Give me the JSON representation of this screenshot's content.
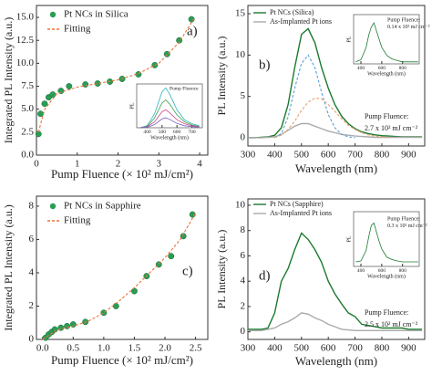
{
  "chart_data": [
    {
      "type": "scatter",
      "panel_label": "a)",
      "xlabel": "Pump Fluence (× 10² mJ/cm²)",
      "ylabel": "Integrated PL Intensity (a.u.)",
      "xlim": [
        0,
        4.2
      ],
      "xticks": [
        0,
        1,
        2,
        3,
        4
      ],
      "ylim": [
        0,
        16.3
      ],
      "yticks": [
        {
          "value": 0,
          "label": "0.0"
        },
        2.5,
        {
          "value": 5,
          "label": "5.0"
        },
        7.5,
        {
          "value": 10,
          "label": "10.0"
        },
        12.5,
        {
          "value": 15,
          "label": "15.0"
        }
      ],
      "series": [
        {
          "name": "Pt NCs in Silica",
          "style": "markers",
          "color": "#2a9d55",
          "x": [
            0.05,
            0.1,
            0.2,
            0.3,
            0.4,
            0.6,
            0.8,
            1.2,
            1.5,
            1.8,
            2.1,
            2.5,
            2.9,
            3.2,
            3.5,
            3.8
          ],
          "values": [
            2.3,
            4.5,
            5.6,
            6.3,
            6.6,
            7,
            7.5,
            7.7,
            7.8,
            8,
            8.3,
            8.8,
            9.8,
            11,
            12.5,
            14.8
          ]
        },
        {
          "name": "Fitting",
          "style": "dashed",
          "color": "#e8743b",
          "x": [
            0.05,
            0.2,
            0.5,
            1,
            1.5,
            2,
            2.5,
            3,
            3.5,
            3.85
          ],
          "values": [
            2.5,
            5,
            6.7,
            7.4,
            7.8,
            8.2,
            8.9,
            10,
            12.3,
            14.8
          ]
        }
      ],
      "inset": {
        "type": "line",
        "legend_title": "Pump Fluence",
        "ylabel": "PL",
        "xlabel": "Wavelength (nm)",
        "xlim": [
          330,
          770
        ],
        "xticks": [
          400,
          500,
          600,
          700
        ],
        "ylim": [
          0,
          1.1
        ],
        "series": [
          {
            "style": "line",
            "color": "#2bb3c0",
            "x": [
              350,
              400,
              450,
              500,
              525,
              550,
              600,
              650,
              700,
              750
            ],
            "values": [
              0,
              0.05,
              0.35,
              0.9,
              1,
              0.85,
              0.45,
              0.2,
              0.1,
              0.05
            ]
          },
          {
            "style": "line",
            "color": "#3aa24a",
            "x": [
              350,
              400,
              450,
              500,
              525,
              550,
              600,
              650,
              700,
              750
            ],
            "values": [
              0,
              0.03,
              0.25,
              0.62,
              0.7,
              0.6,
              0.32,
              0.15,
              0.07,
              0.03
            ]
          },
          {
            "style": "line",
            "color": "#d04a8c",
            "x": [
              350,
              400,
              450,
              500,
              525,
              550,
              600,
              650,
              700,
              750
            ],
            "values": [
              0,
              0.02,
              0.15,
              0.4,
              0.45,
              0.38,
              0.2,
              0.1,
              0.05,
              0.02
            ]
          },
          {
            "style": "line",
            "color": "#7a5fc0",
            "x": [
              350,
              400,
              450,
              500,
              525,
              550,
              600,
              650,
              700,
              750
            ],
            "values": [
              0,
              0.01,
              0.08,
              0.22,
              0.25,
              0.21,
              0.11,
              0.05,
              0.03,
              0.01
            ]
          }
        ]
      }
    },
    {
      "type": "line",
      "panel_label": "b)",
      "xlabel": "Wavelength (nm)",
      "ylabel": "PL Intensity (a.u.)",
      "annotation": [
        "Pump Fluence:",
        "2.7 x 10² mJ cm⁻²"
      ],
      "xlim": [
        300,
        960
      ],
      "xticks": [
        300,
        400,
        500,
        600,
        700,
        800,
        900
      ],
      "ylim": [
        -1,
        16
      ],
      "yticks": [
        0,
        5,
        10,
        15
      ],
      "series": [
        {
          "name": "Pt NCs (Silica)",
          "style": "line",
          "color": "#1b7a2e",
          "x": [
            300,
            325,
            350,
            375,
            400,
            425,
            450,
            475,
            500,
            525,
            550,
            575,
            600,
            625,
            650,
            675,
            700,
            725,
            750,
            775,
            800,
            825,
            850,
            875,
            900,
            925,
            950
          ],
          "values": [
            0,
            0,
            0.05,
            0.1,
            0.3,
            1.2,
            4,
            8.5,
            12.5,
            13.2,
            11.5,
            8.5,
            6,
            4,
            2.6,
            1.7,
            1.1,
            0.7,
            0.5,
            0.35,
            0.25,
            0.2,
            0.15,
            0.1,
            0.1,
            0.1,
            0.1
          ]
        },
        {
          "name": "As-Implanted Pt ions",
          "style": "line",
          "color": "#aaaaaa",
          "x": [
            300,
            325,
            350,
            375,
            400,
            425,
            450,
            475,
            500,
            525,
            550,
            575,
            600,
            625,
            650,
            675,
            700,
            725,
            750,
            775,
            800,
            825,
            850,
            875,
            900,
            925,
            950
          ],
          "values": [
            0,
            0,
            0,
            0.05,
            0.1,
            0.4,
            0.9,
            1.4,
            1.7,
            1.7,
            1.4,
            1.1,
            0.8,
            0.6,
            0.4,
            0.3,
            0.2,
            0.15,
            0.1,
            0.05,
            0.05,
            0.05,
            0.05,
            0.05,
            0.05,
            0.05,
            0.05
          ]
        },
        {
          "style": "dashed",
          "color": "#5aa0d8",
          "x": [
            400,
            425,
            450,
            475,
            500,
            525,
            550,
            575,
            600,
            625,
            650,
            675,
            700
          ],
          "values": [
            0,
            0.5,
            2.5,
            6,
            9,
            10,
            8.5,
            5.5,
            2.8,
            1.2,
            0.4,
            0.1,
            0
          ]
        },
        {
          "style": "dashed",
          "color": "#e8a070",
          "x": [
            400,
            425,
            450,
            475,
            500,
            525,
            550,
            575,
            600,
            625,
            650,
            675,
            700,
            725,
            750,
            775,
            800,
            825
          ],
          "values": [
            0,
            0.3,
            1,
            2,
            3.3,
            4.3,
            4.8,
            4.7,
            4,
            3.2,
            2.3,
            1.5,
            1,
            0.6,
            0.35,
            0.2,
            0.1,
            0
          ]
        }
      ],
      "inset": {
        "type": "line",
        "annotation": [
          "Pump Fluence:",
          "0.14 x 10² mJ cm⁻²"
        ],
        "ylabel": "PL",
        "xlabel": "Wavelength (nm)",
        "xlim": [
          330,
          960
        ],
        "xticks": [
          400,
          600,
          800
        ],
        "ylim": [
          0,
          1.2
        ],
        "series": [
          {
            "style": "line",
            "color": "#1b7a2e",
            "x": [
              350,
              400,
              450,
              475,
              500,
              525,
              550,
              575,
              600,
              650,
              700,
              750,
              800,
              850,
              900,
              950
            ],
            "values": [
              0.05,
              0.1,
              0.4,
              0.7,
              0.9,
              1,
              0.8,
              0.6,
              0.4,
              0.2,
              0.12,
              0.08,
              0.05,
              0.05,
              0.05,
              0.05
            ]
          }
        ]
      }
    },
    {
      "type": "scatter",
      "panel_label": "c)",
      "xlabel": "Pump Fluence (× 10² mJ/cm²)",
      "ylabel": "Integrated PL Intensity (a.u.)",
      "xlim": [
        -0.1,
        2.7
      ],
      "xticks": [
        {
          "value": 0,
          "label": "0.0"
        },
        0.5,
        {
          "value": 1,
          "label": "1.0"
        },
        1.5,
        {
          "value": 2,
          "label": "2.0"
        },
        2.5
      ],
      "ylim": [
        0,
        8.6
      ],
      "yticks": [
        0,
        2,
        4,
        6,
        8
      ],
      "series": [
        {
          "name": "Pt NCs in Sapphire",
          "style": "markers",
          "color": "#2a9d55",
          "x": [
            0.05,
            0.1,
            0.15,
            0.2,
            0.3,
            0.4,
            0.5,
            0.7,
            1,
            1.2,
            1.5,
            1.7,
            1.9,
            2.1,
            2.3,
            2.45
          ],
          "values": [
            0.1,
            0.3,
            0.45,
            0.6,
            0.7,
            0.8,
            0.9,
            1.05,
            1.6,
            2,
            2.9,
            3.8,
            4.5,
            5,
            6.2,
            7.5
          ]
        },
        {
          "name": "Fitting",
          "style": "dashed",
          "color": "#e8743b",
          "x": [
            0,
            0.25,
            0.5,
            0.75,
            1,
            1.25,
            1.5,
            1.75,
            2,
            2.25,
            2.5
          ],
          "values": [
            0,
            0.6,
            0.8,
            1.1,
            1.6,
            2.3,
            3.1,
            4,
            4.9,
            6,
            7.6
          ]
        }
      ]
    },
    {
      "type": "line",
      "panel_label": "d)",
      "xlabel": "Wavelength (nm)",
      "ylabel": "PL Intensity (a.u.)",
      "annotation": [
        "Pump Fluence:",
        "2.5 x 10² mJ cm⁻²"
      ],
      "xlim": [
        300,
        960
      ],
      "xticks": [
        300,
        400,
        500,
        600,
        700,
        800,
        900
      ],
      "ylim": [
        -0.6,
        10.5
      ],
      "yticks": [
        0,
        2,
        4,
        6,
        8,
        10
      ],
      "series": [
        {
          "name": "Pt NCs (Sapphire)",
          "style": "line",
          "color": "#1b7a2e",
          "x": [
            300,
            325,
            350,
            375,
            400,
            425,
            450,
            475,
            500,
            525,
            550,
            575,
            600,
            625,
            650,
            675,
            700,
            725,
            750,
            775,
            800,
            825,
            850,
            875,
            900,
            925,
            950
          ],
          "values": [
            0.2,
            0.2,
            0.2,
            0.3,
            1.5,
            4,
            5,
            6.5,
            7.8,
            7.3,
            6.5,
            5.5,
            4,
            3,
            2.2,
            1.5,
            1.2,
            0.6,
            0.5,
            0.4,
            0.3,
            0.3,
            0.3,
            0.3,
            0.2,
            0.2,
            0.2
          ]
        },
        {
          "name": "As-Implanted Pt ions",
          "style": "line",
          "color": "#aaaaaa",
          "x": [
            300,
            325,
            350,
            375,
            400,
            425,
            450,
            475,
            500,
            525,
            550,
            575,
            600,
            625,
            650,
            675,
            700,
            725,
            750,
            775,
            800,
            825,
            850,
            875,
            900,
            925,
            950
          ],
          "values": [
            0.1,
            0.1,
            0.1,
            0.2,
            0.3,
            0.6,
            0.8,
            1.1,
            1.5,
            1.4,
            1.1,
            0.9,
            0.6,
            0.4,
            0.2,
            0.15,
            0.1,
            0.1,
            0.1,
            0.1,
            0.1,
            0.1,
            0.1,
            0.1,
            0.1,
            0.1,
            0.1
          ]
        }
      ],
      "inset": {
        "type": "line",
        "annotation": [
          "Pump Fluence:",
          "0.3 x 10² mJ cm⁻²"
        ],
        "ylabel": "PL",
        "xlabel": "Wavelength (nm)",
        "xlim": [
          330,
          960
        ],
        "xticks": [
          400,
          600,
          800
        ],
        "ylim": [
          0,
          1.2
        ],
        "series": [
          {
            "style": "line",
            "color": "#1b7a2e",
            "x": [
              350,
              400,
              450,
              475,
              500,
              525,
              550,
              575,
              600,
              650,
              700,
              750,
              800,
              850,
              900,
              950
            ],
            "values": [
              0.1,
              0.12,
              0.35,
              0.65,
              0.9,
              0.95,
              0.75,
              0.55,
              0.38,
              0.2,
              0.15,
              0.12,
              0.1,
              0.1,
              0.1,
              0.1
            ]
          }
        ]
      }
    }
  ]
}
